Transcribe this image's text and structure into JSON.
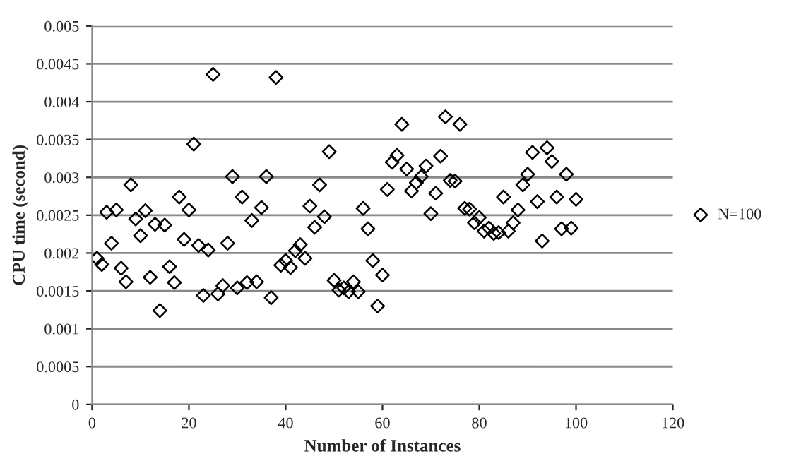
{
  "chart_data": {
    "type": "scatter",
    "xlabel": "Number of Instances",
    "ylabel": "CPU time (second)",
    "xlim": [
      0,
      120
    ],
    "xticks": [
      0,
      20,
      40,
      60,
      80,
      100,
      120
    ],
    "ylim": [
      0,
      0.005
    ],
    "yticks": [
      0,
      0.0005,
      0.001,
      0.0015,
      0.002,
      0.0025,
      0.003,
      0.0035,
      0.004,
      0.0045,
      0.005
    ],
    "grid": "y",
    "legend": "right",
    "marker": "diamond",
    "series": [
      {
        "name": "N=100",
        "color": "#000000",
        "x": [
          1,
          2,
          3,
          4,
          5,
          6,
          7,
          8,
          9,
          10,
          11,
          12,
          13,
          14,
          15,
          16,
          17,
          18,
          19,
          20,
          21,
          22,
          23,
          24,
          25,
          26,
          27,
          28,
          29,
          30,
          31,
          32,
          33,
          34,
          35,
          36,
          37,
          38,
          39,
          40,
          41,
          42,
          43,
          44,
          45,
          46,
          47,
          48,
          49,
          50,
          51,
          52,
          53,
          54,
          55,
          56,
          57,
          58,
          59,
          60,
          61,
          62,
          63,
          64,
          65,
          66,
          67,
          68,
          69,
          70,
          71,
          72,
          73,
          74,
          75,
          76,
          77,
          78,
          79,
          80,
          81,
          82,
          83,
          84,
          85,
          86,
          87,
          88,
          89,
          90,
          91,
          92,
          93,
          94,
          95,
          96,
          97,
          98,
          99,
          100
        ],
        "values": [
          0.00193,
          0.00185,
          0.00254,
          0.00213,
          0.00257,
          0.0018,
          0.00162,
          0.0029,
          0.00245,
          0.00223,
          0.00256,
          0.00168,
          0.00238,
          0.00124,
          0.00237,
          0.00182,
          0.00161,
          0.00274,
          0.00218,
          0.00257,
          0.00344,
          0.0021,
          0.00144,
          0.00204,
          0.00436,
          0.00146,
          0.00157,
          0.00213,
          0.00301,
          0.00154,
          0.00274,
          0.00161,
          0.00243,
          0.00162,
          0.0026,
          0.00301,
          0.00141,
          0.00432,
          0.00184,
          0.0019,
          0.00181,
          0.00203,
          0.00211,
          0.00193,
          0.00262,
          0.00234,
          0.0029,
          0.00248,
          0.00334,
          0.00164,
          0.00151,
          0.00154,
          0.00149,
          0.00162,
          0.00149,
          0.00259,
          0.00232,
          0.0019,
          0.0013,
          0.00171,
          0.00284,
          0.0032,
          0.00329,
          0.0037,
          0.00311,
          0.00282,
          0.00293,
          0.00301,
          0.00315,
          0.00252,
          0.00279,
          0.00328,
          0.0038,
          0.00296,
          0.00295,
          0.0037,
          0.00259,
          0.00258,
          0.0024,
          0.00247,
          0.00229,
          0.00233,
          0.00226,
          0.00227,
          0.00274,
          0.00229,
          0.0024,
          0.00257,
          0.0029,
          0.00304,
          0.00333,
          0.00268,
          0.00216,
          0.00339,
          0.00321,
          0.00274,
          0.00232,
          0.00304,
          0.00233,
          0.00271
        ]
      }
    ]
  }
}
